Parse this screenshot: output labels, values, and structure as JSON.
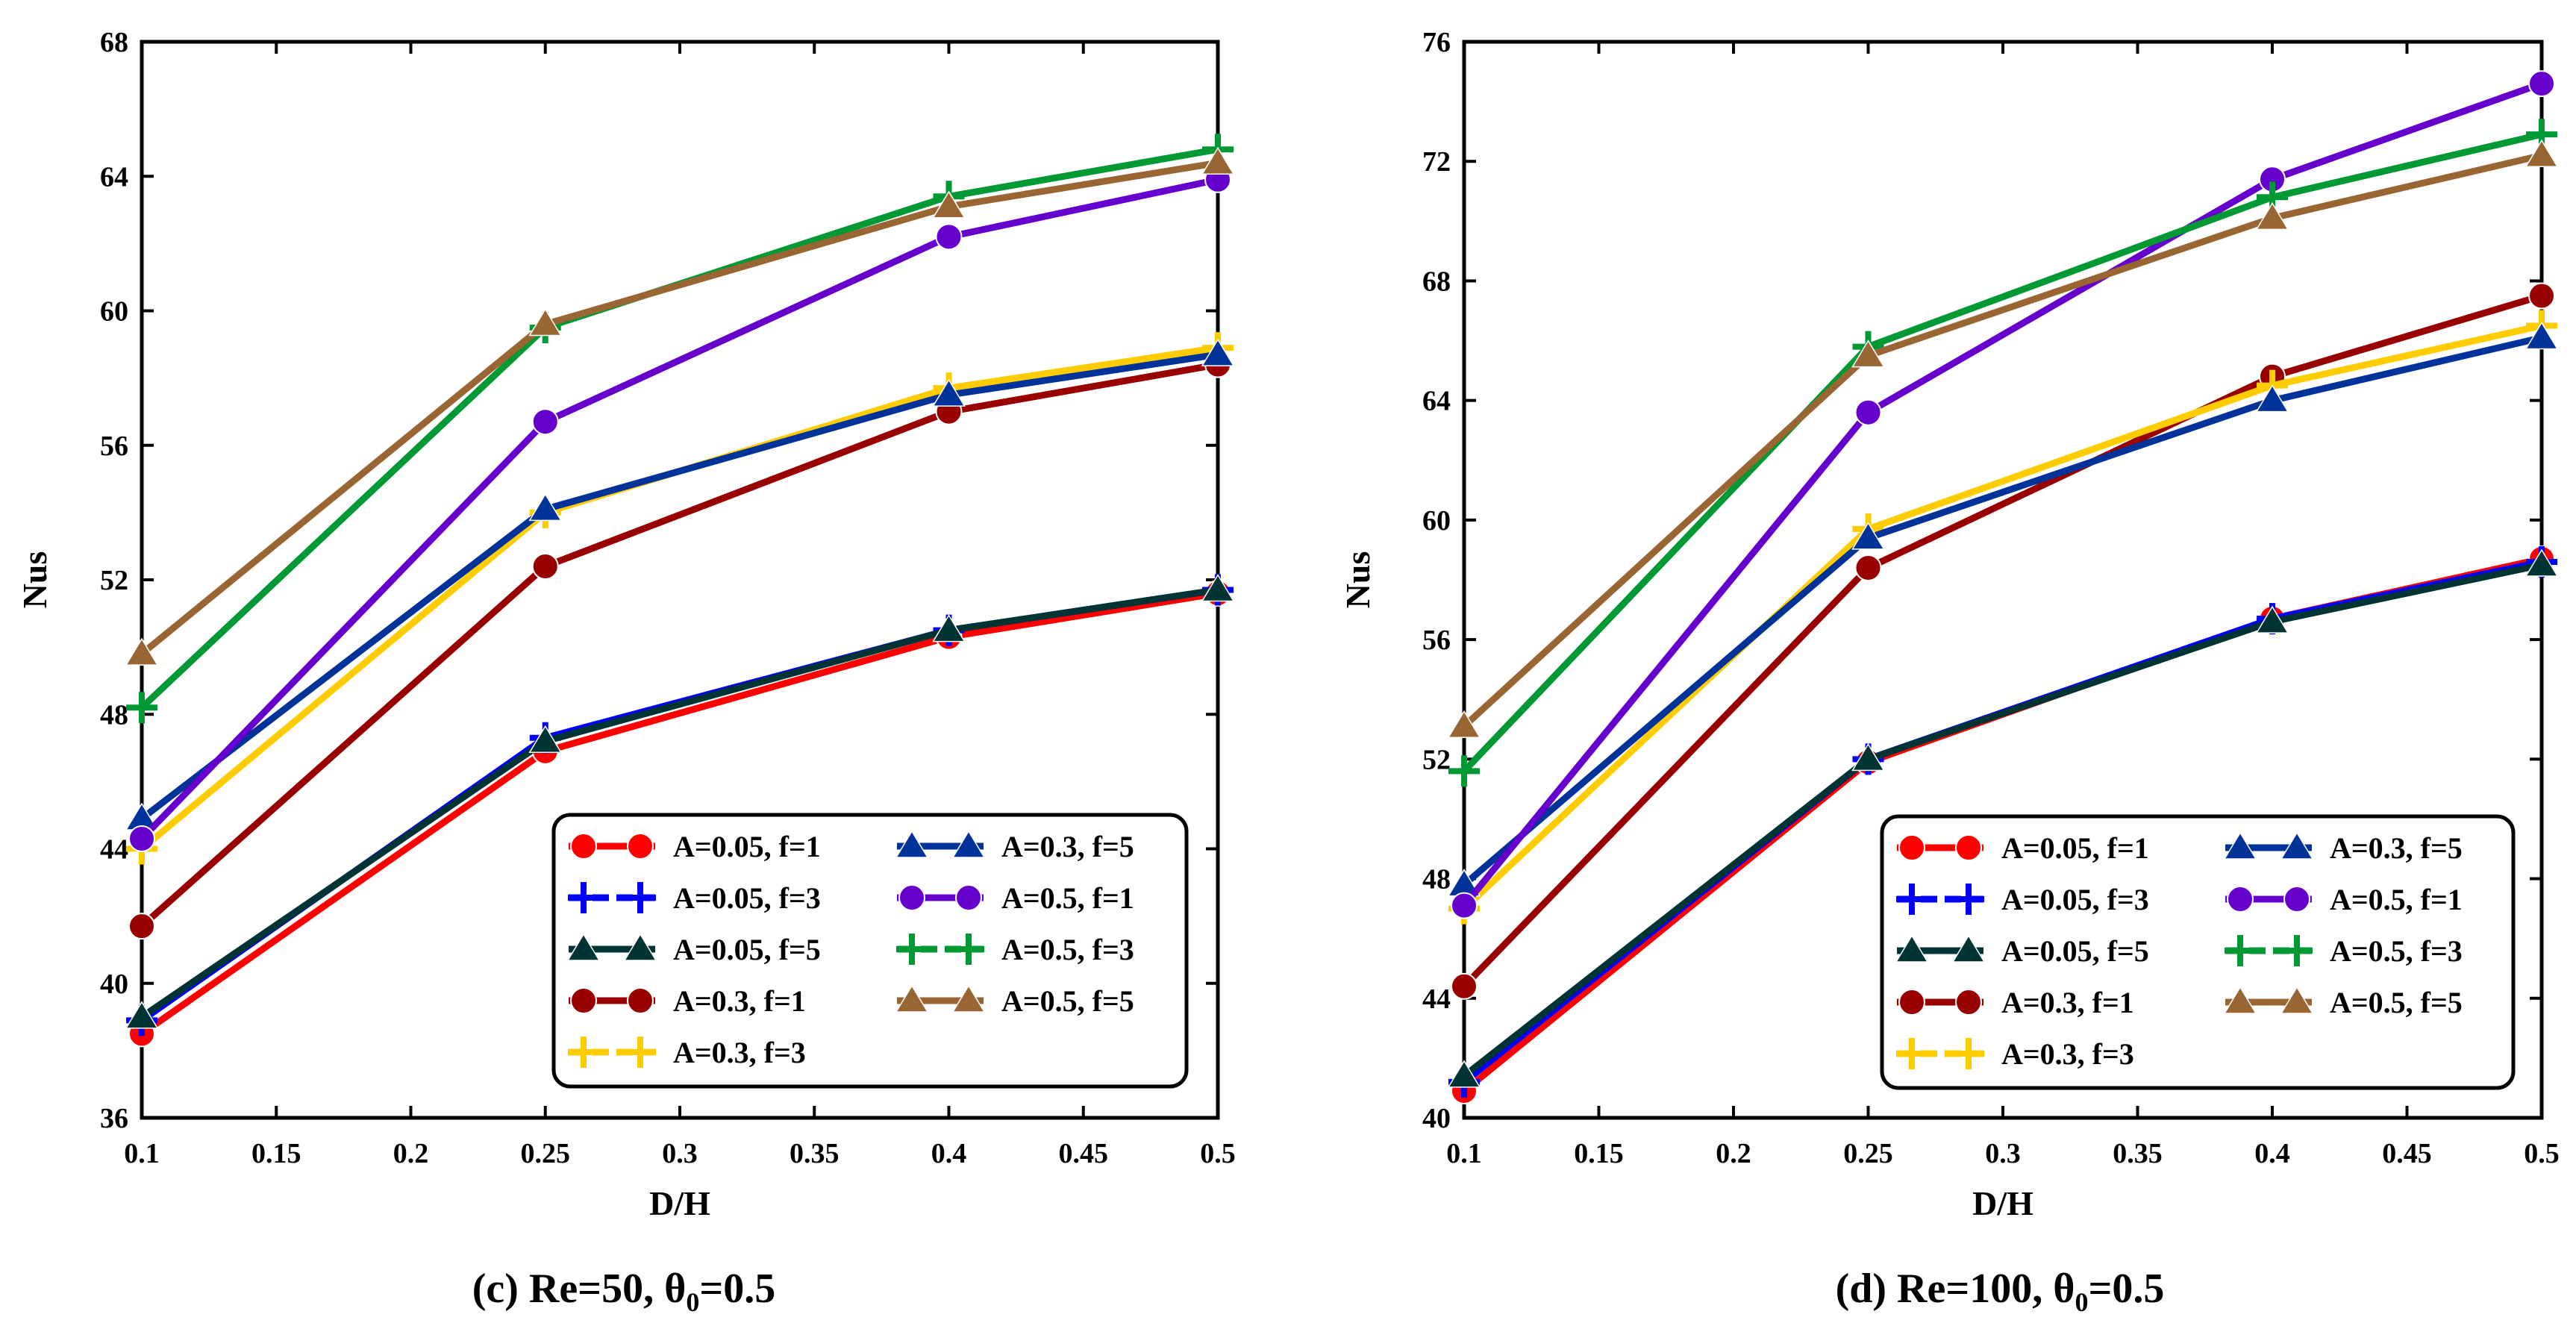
{
  "series_styles": [
    {
      "name": "A=0.05, f=1",
      "color": "#ff0000",
      "marker": "circle"
    },
    {
      "name": "A=0.05, f=3",
      "color": "#0000ff",
      "marker": "plus"
    },
    {
      "name": "A=0.05, f=5",
      "color": "#003333",
      "marker": "triangle"
    },
    {
      "name": "A=0.3, f=1",
      "color": "#990000",
      "marker": "circle"
    },
    {
      "name": "A=0.3, f=3",
      "color": "#ffcc00",
      "marker": "plus"
    },
    {
      "name": "A=0.3, f=5",
      "color": "#003399",
      "marker": "triangle"
    },
    {
      "name": "A=0.5, f=1",
      "color": "#6600cc",
      "marker": "circle"
    },
    {
      "name": "A=0.5, f=3",
      "color": "#009933",
      "marker": "plus"
    },
    {
      "name": "A=0.5, f=5",
      "color": "#996633",
      "marker": "triangle"
    }
  ],
  "chart_data": [
    {
      "type": "line",
      "caption": {
        "prefix": "(c) Re=50, ",
        "theta": "θ",
        "theta_sub": "0",
        "suffix": "=0.5"
      },
      "xlabel": "D/H",
      "ylabel": "Nus",
      "xlim": [
        0.1,
        0.5
      ],
      "ylim": [
        36,
        68
      ],
      "xticks": [
        "0.1",
        "0.15",
        "0.2",
        "0.25",
        "0.3",
        "0.35",
        "0.4",
        "0.45",
        "0.5"
      ],
      "yticks": [
        "36",
        "40",
        "44",
        "48",
        "52",
        "56",
        "60",
        "64",
        "68"
      ],
      "x": [
        0.1,
        0.25,
        0.4,
        0.5
      ],
      "series": [
        {
          "name": "A=0.05, f=1",
          "values": [
            38.5,
            46.9,
            50.3,
            51.6
          ]
        },
        {
          "name": "A=0.05, f=3",
          "values": [
            38.9,
            47.3,
            50.5,
            51.7
          ]
        },
        {
          "name": "A=0.05, f=5",
          "values": [
            39.0,
            47.2,
            50.5,
            51.7
          ]
        },
        {
          "name": "A=0.3, f=1",
          "values": [
            41.7,
            52.4,
            57.0,
            58.4
          ]
        },
        {
          "name": "A=0.3, f=3",
          "values": [
            44.0,
            54.0,
            57.7,
            58.9
          ]
        },
        {
          "name": "A=0.3, f=5",
          "values": [
            44.9,
            54.1,
            57.5,
            58.7
          ]
        },
        {
          "name": "A=0.5, f=1",
          "values": [
            44.3,
            56.7,
            62.2,
            63.9
          ]
        },
        {
          "name": "A=0.5, f=3",
          "values": [
            48.2,
            59.5,
            63.4,
            64.8
          ]
        },
        {
          "name": "A=0.5, f=5",
          "values": [
            49.8,
            59.6,
            63.1,
            64.4
          ]
        }
      ]
    },
    {
      "type": "line",
      "caption": {
        "prefix": "(d) Re=100, ",
        "theta": "θ",
        "theta_sub": "0",
        "suffix": "=0.5"
      },
      "xlabel": "D/H",
      "ylabel": "Nus",
      "xlim": [
        0.1,
        0.5
      ],
      "ylim": [
        40,
        76
      ],
      "xticks": [
        "0.1",
        "0.15",
        "0.2",
        "0.25",
        "0.3",
        "0.35",
        "0.4",
        "0.45",
        "0.5"
      ],
      "yticks": [
        "40",
        "44",
        "48",
        "52",
        "56",
        "60",
        "64",
        "68",
        "72",
        "76"
      ],
      "x": [
        0.1,
        0.25,
        0.4,
        0.5
      ],
      "series": [
        {
          "name": "A=0.05, f=1",
          "values": [
            40.9,
            51.9,
            56.7,
            58.7
          ]
        },
        {
          "name": "A=0.05, f=3",
          "values": [
            41.2,
            52.0,
            56.7,
            58.6
          ]
        },
        {
          "name": "A=0.05, f=5",
          "values": [
            41.4,
            52.0,
            56.6,
            58.5
          ]
        },
        {
          "name": "A=0.3, f=1",
          "values": [
            44.4,
            58.4,
            64.8,
            67.5
          ]
        },
        {
          "name": "A=0.3, f=3",
          "values": [
            47.0,
            59.7,
            64.5,
            66.5
          ]
        },
        {
          "name": "A=0.3, f=5",
          "values": [
            47.8,
            59.4,
            64.0,
            66.1
          ]
        },
        {
          "name": "A=0.5, f=1",
          "values": [
            47.1,
            63.6,
            71.4,
            74.6
          ]
        },
        {
          "name": "A=0.5, f=3",
          "values": [
            51.6,
            65.8,
            70.8,
            72.9
          ]
        },
        {
          "name": "A=0.5, f=5",
          "values": [
            53.1,
            65.5,
            70.1,
            72.2
          ]
        }
      ]
    }
  ]
}
